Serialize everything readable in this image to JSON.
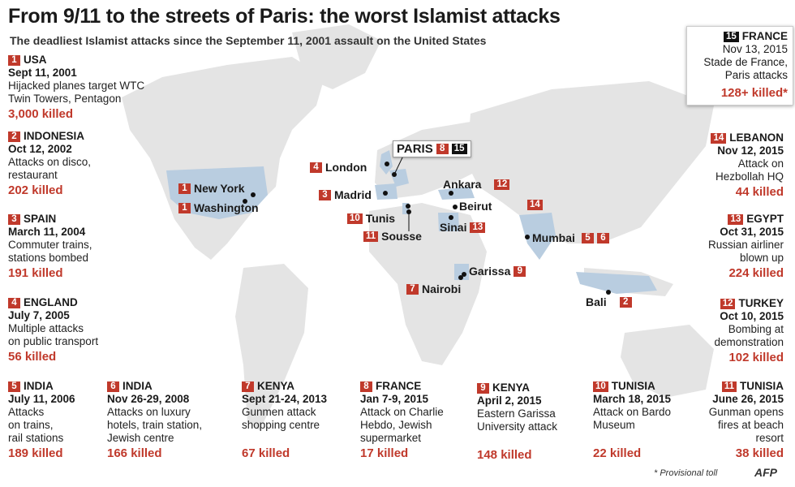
{
  "header": {
    "title": "From 9/11 to the streets of Paris: the worst Islamist attacks",
    "subtitle": "The deadliest Islamist attacks since the September 11, 2001 assault on the United States"
  },
  "colors": {
    "accent": "#c0392b",
    "land": "#e4e4e4",
    "highlight": "#b9cde0"
  },
  "events": [
    {
      "num": "1",
      "country": "USA",
      "date": "Sept 11, 2001",
      "desc1": "Hijacked planes target WTC",
      "desc2": "Twin Towers, Pentagon",
      "killed": "3,000 killed"
    },
    {
      "num": "2",
      "country": "INDONESIA",
      "date": "Oct 12, 2002",
      "desc1": "Attacks on disco,",
      "desc2": "restaurant",
      "killed": "202 killed"
    },
    {
      "num": "3",
      "country": "SPAIN",
      "date": "March 11, 2004",
      "desc1": "Commuter trains,",
      "desc2": "stations bombed",
      "killed": "191 killed"
    },
    {
      "num": "4",
      "country": "ENGLAND",
      "date": "July 7, 2005",
      "desc1": "Multiple attacks",
      "desc2": "on public transport",
      "killed": "56 killed"
    },
    {
      "num": "5",
      "country": "INDIA",
      "date": "July 11, 2006",
      "desc1": "Attacks",
      "desc2": "on trains,",
      "desc3": "rail stations",
      "killed": "189 killed"
    },
    {
      "num": "6",
      "country": "INDIA",
      "date": "Nov 26-29, 2008",
      "desc1": "Attacks on luxury",
      "desc2": "hotels, train station,",
      "desc3": "Jewish centre",
      "killed": "166 killed"
    },
    {
      "num": "7",
      "country": "KENYA",
      "date": "Sept 21-24, 2013",
      "desc1": "Gunmen attack",
      "desc2": "shopping centre",
      "killed": "67 killed"
    },
    {
      "num": "8",
      "country": "FRANCE",
      "date": "Jan 7-9, 2015",
      "desc1": "Attack on Charlie",
      "desc2": "Hebdo, Jewish",
      "desc3": "supermarket",
      "killed": "17 killed"
    },
    {
      "num": "9",
      "country": "KENYA",
      "date": "April 2, 2015",
      "desc1": "Eastern Garissa",
      "desc2": "University attack",
      "killed": "148 killed"
    },
    {
      "num": "10",
      "country": "TUNISIA",
      "date": "March 18, 2015",
      "desc1": "Attack on Bardo",
      "desc2": "Museum",
      "killed": "22 killed"
    },
    {
      "num": "11",
      "country": "TUNISIA",
      "date": "June 26, 2015",
      "desc1": "Gunman opens",
      "desc2": "fires at beach",
      "desc3": "resort",
      "killed": "38 killed"
    },
    {
      "num": "12",
      "country": "TURKEY",
      "date": "Oct 10, 2015",
      "desc1": "Bombing at",
      "desc2": "demonstration",
      "killed": "102 killed"
    },
    {
      "num": "13",
      "country": "EGYPT",
      "date": "Oct 31, 2015",
      "desc1": "Russian airliner",
      "desc2": "blown up",
      "killed": "224 killed"
    },
    {
      "num": "14",
      "country": "LEBANON",
      "date": "Nov 12, 2015",
      "desc1": "Attack on",
      "desc2": "Hezbollah HQ",
      "killed": "44 killed"
    }
  ],
  "featured": {
    "num": "15",
    "country": "FRANCE",
    "date": "Nov 13, 2015",
    "desc1": "Stade de France,",
    "desc2": "Paris attacks",
    "killed": "128+ killed*"
  },
  "map_labels": {
    "newyork": "New York",
    "washington": "Washington",
    "london": "London",
    "madrid": "Madrid",
    "tunis": "Tunis",
    "sousse": "Sousse",
    "ankara": "Ankara",
    "beirut": "Beirut",
    "sinai": "Sinai",
    "mumbai": "Mumbai",
    "garissa": "Garissa",
    "nairobi": "Nairobi",
    "bali": "Bali",
    "paris": "PARIS"
  },
  "map_numbers": {
    "paris_a": "8",
    "paris_b": "15",
    "ankara": "12",
    "sinai": "13",
    "beirut_area": "14",
    "mumbai_a": "5",
    "mumbai_b": "6",
    "garissa": "9",
    "nairobi": "7",
    "bali": "2",
    "tunis": "10",
    "sousse": "11",
    "london": "4",
    "madrid": "3",
    "newyork": "1",
    "washington": "1"
  },
  "footnote": "* Provisional toll",
  "logo": "AFP"
}
